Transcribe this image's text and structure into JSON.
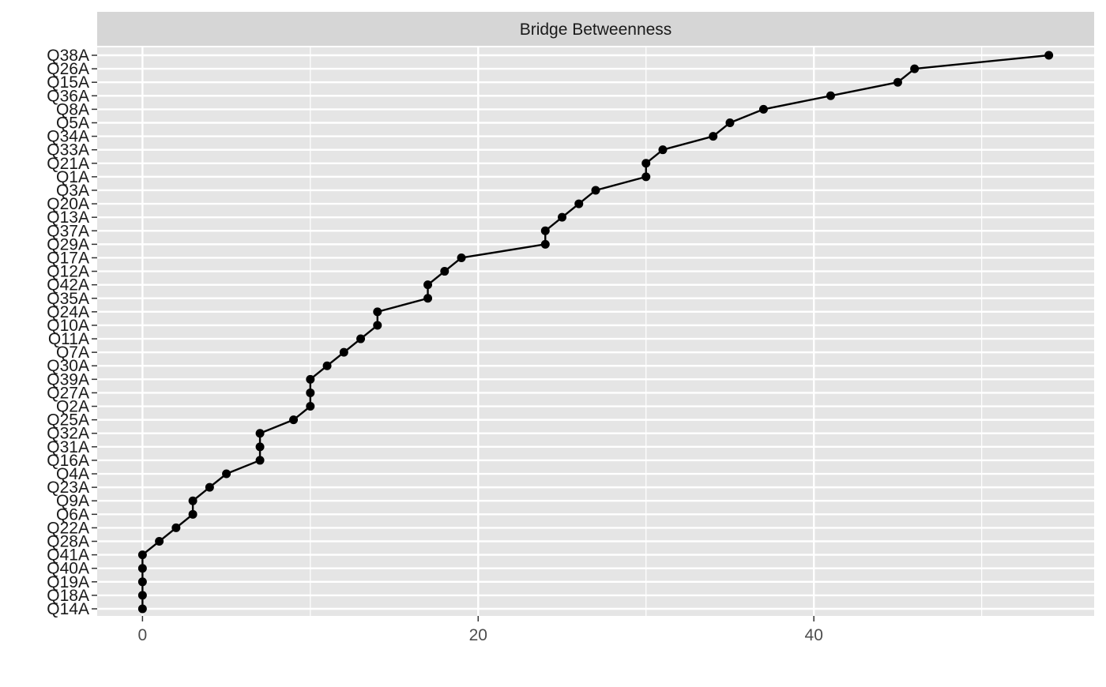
{
  "chart_data": {
    "type": "line",
    "title": "",
    "facet_label": "Bridge Betweenness",
    "xlabel": "",
    "ylabel": "",
    "x_ticks": [
      0,
      20,
      40
    ],
    "xlim": [
      -2.7,
      56.7
    ],
    "grid": true,
    "legend": "none",
    "colors": {
      "panel": "#e5e5e5",
      "strip": "#d6d6d6",
      "grid": "#ffffff",
      "mark": "#000000",
      "tick_text": "#4d4d4d",
      "label_text": "#1a1a1a"
    },
    "categories": [
      "Q38A",
      "Q26A",
      "Q15A",
      "Q36A",
      "Q8A",
      "Q5A",
      "Q34A",
      "Q33A",
      "Q21A",
      "Q1A",
      "Q3A",
      "Q20A",
      "Q13A",
      "Q37A",
      "Q29A",
      "Q17A",
      "Q12A",
      "Q42A",
      "Q35A",
      "Q24A",
      "Q10A",
      "Q11A",
      "Q7A",
      "Q30A",
      "Q39A",
      "Q27A",
      "Q2A",
      "Q25A",
      "Q32A",
      "Q31A",
      "Q16A",
      "Q4A",
      "Q23A",
      "Q9A",
      "Q6A",
      "Q22A",
      "Q28A",
      "Q41A",
      "Q40A",
      "Q19A",
      "Q18A",
      "Q14A"
    ],
    "values": [
      54,
      46,
      45,
      41,
      37,
      35,
      34,
      31,
      30,
      30,
      27,
      26,
      25,
      24,
      24,
      19,
      18,
      17,
      17,
      14,
      14,
      13,
      12,
      11,
      10,
      10,
      10,
      9,
      7,
      7,
      7,
      5,
      4,
      3,
      3,
      2,
      1,
      0,
      0,
      0,
      0,
      0
    ]
  }
}
